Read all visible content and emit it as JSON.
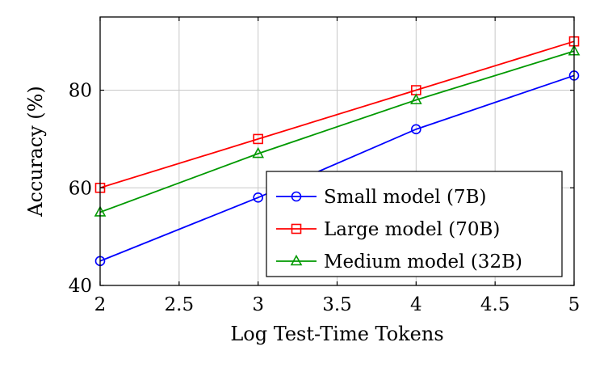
{
  "chart_data": {
    "type": "line",
    "x": [
      2,
      3,
      4,
      5
    ],
    "series": [
      {
        "name": "Small model (7B)",
        "values": [
          45,
          58,
          72,
          83
        ],
        "color": "#0000ff",
        "marker": "circle"
      },
      {
        "name": "Large model (70B)",
        "values": [
          60,
          70,
          80,
          90
        ],
        "color": "#ff0000",
        "marker": "square"
      },
      {
        "name": "Medium model (32B)",
        "values": [
          55,
          67,
          78,
          88
        ],
        "color": "#009900",
        "marker": "triangle"
      }
    ],
    "title": "",
    "xlabel": "Log Test-Time Tokens",
    "ylabel": "Accuracy (%)",
    "xlim": [
      2,
      5
    ],
    "ylim": [
      40,
      95
    ],
    "xticks": [
      2,
      2.5,
      3,
      3.5,
      4,
      4.5,
      5
    ],
    "xtick_labels": [
      "2",
      "2.5",
      "3",
      "3.5",
      "4",
      "4.5",
      "5"
    ],
    "yticks": [
      40,
      60,
      80
    ],
    "ytick_labels": [
      "40",
      "60",
      "80"
    ],
    "grid": true,
    "legend_position": "bottom-right"
  }
}
